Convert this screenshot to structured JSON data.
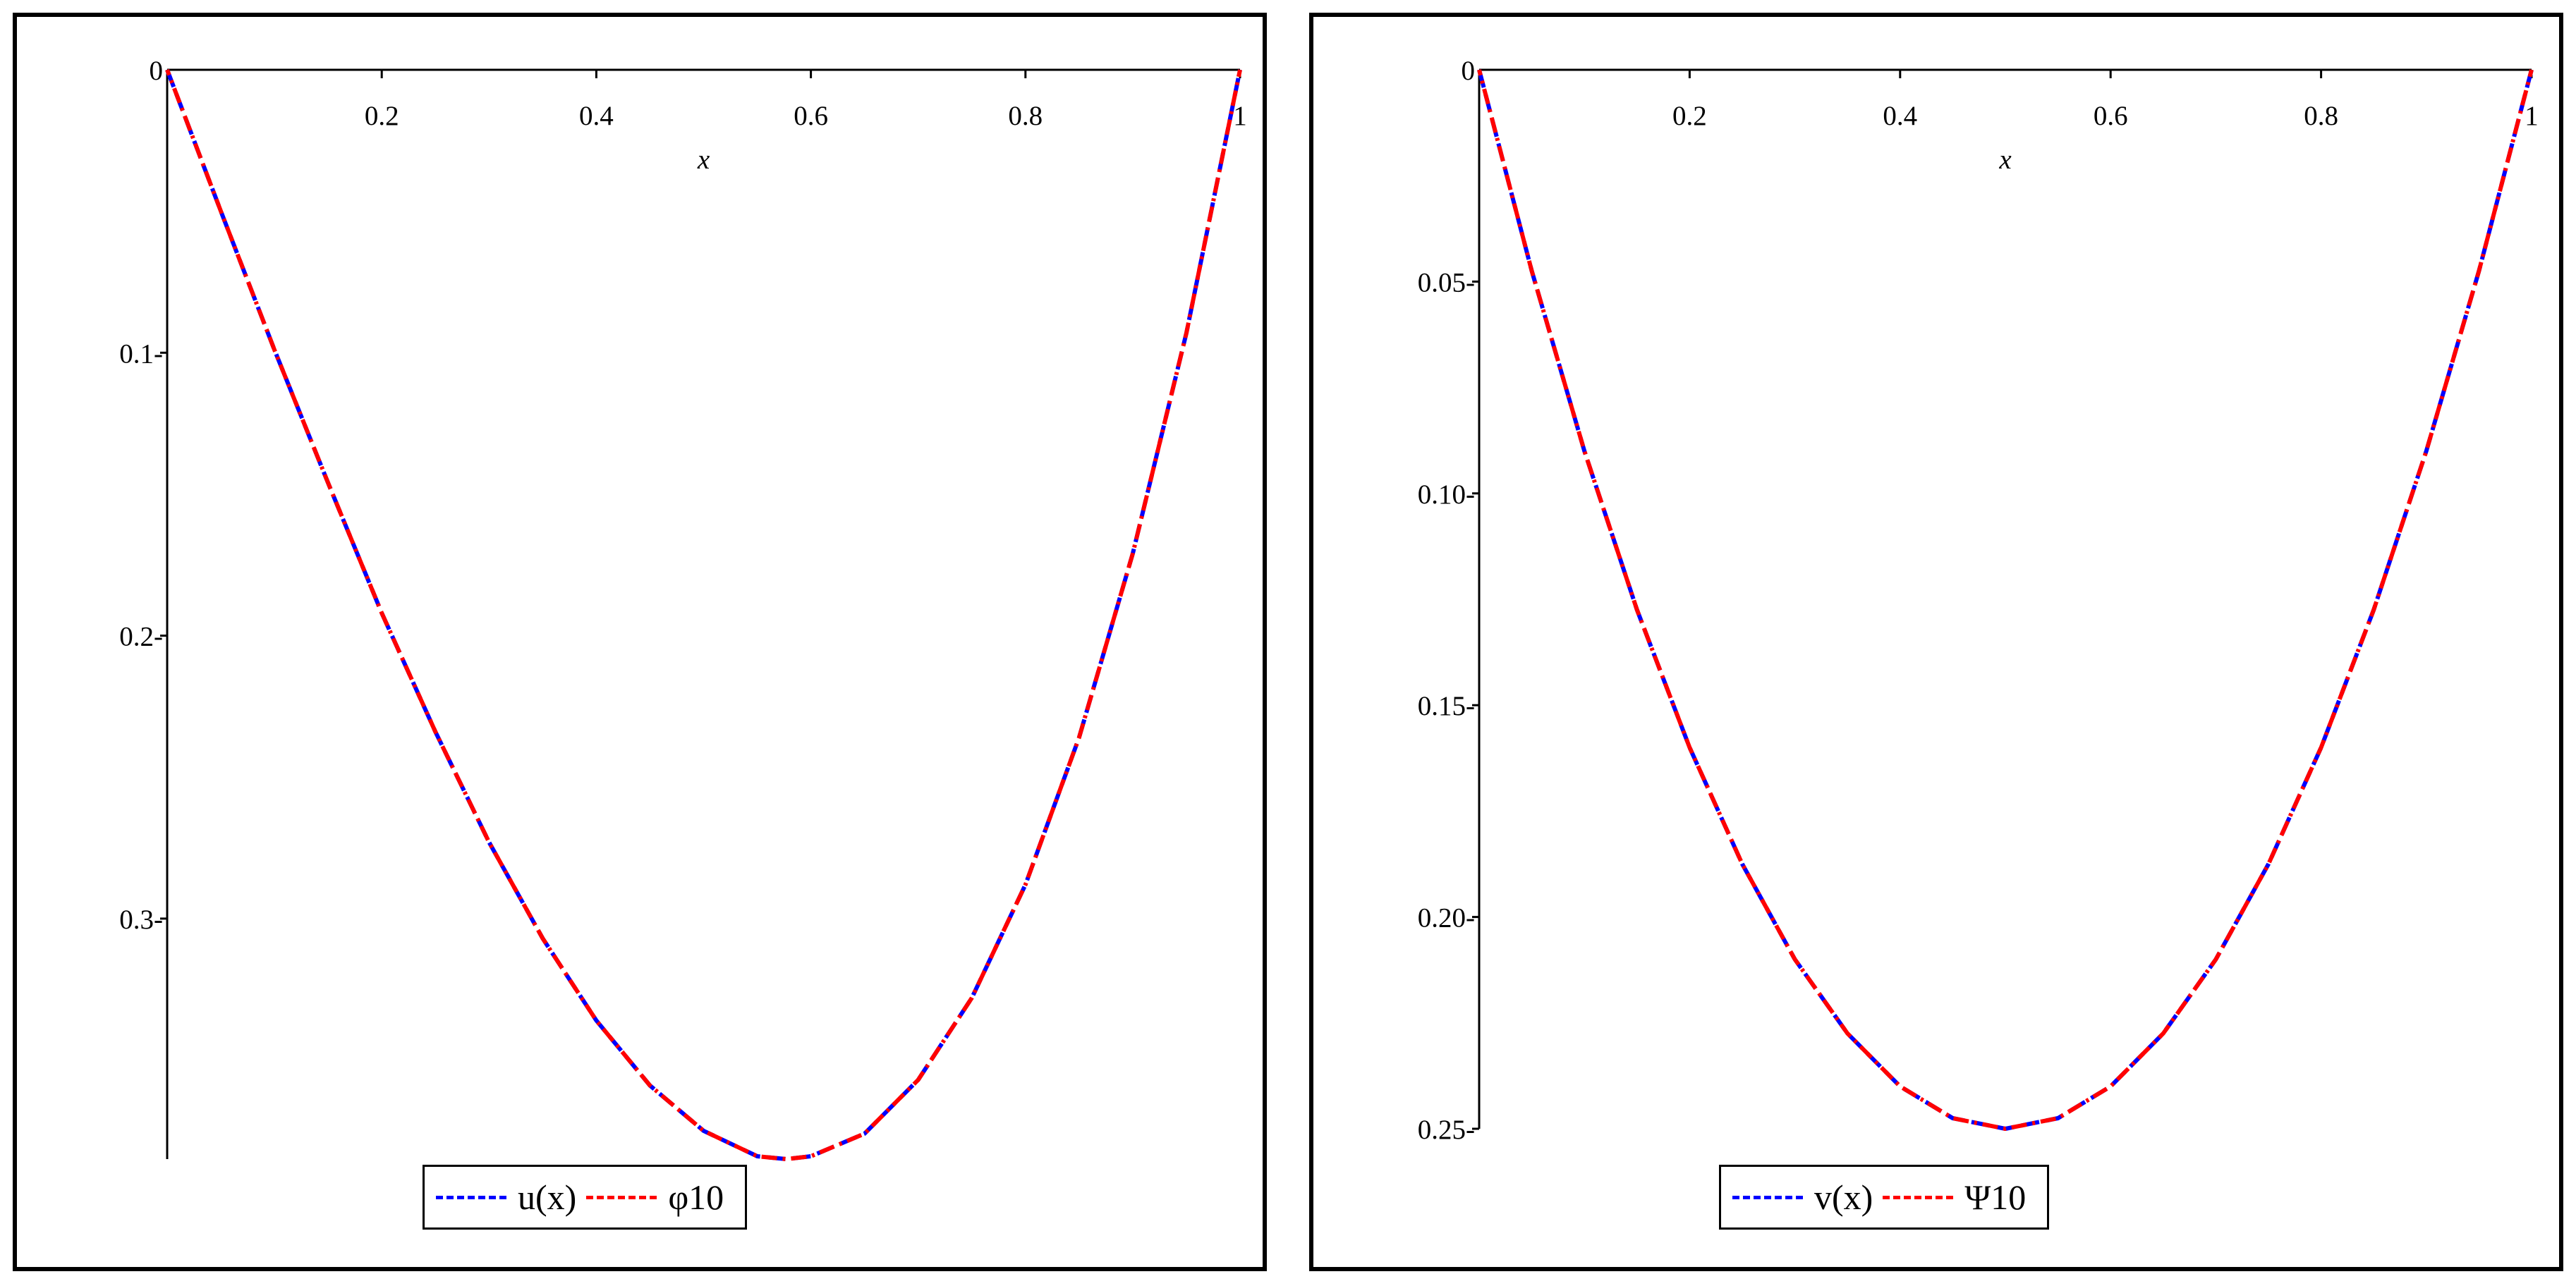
{
  "chart_data": [
    {
      "type": "line",
      "xlabel": "x",
      "ylabel": "",
      "xlim": [
        0,
        1
      ],
      "ylim": [
        0,
        0.385
      ],
      "y_inverted": true,
      "x_ticks": [
        0.2,
        0.4,
        0.6,
        0.8,
        1
      ],
      "x_tick_labels": [
        "0.2",
        "0.4",
        "0.6",
        "0.8",
        "1"
      ],
      "y_ticks": [
        0,
        0.1,
        0.2,
        0.3
      ],
      "y_tick_labels": [
        "0",
        "0.1-",
        "0.2-",
        "0.3-"
      ],
      "x": [
        0,
        0.05,
        0.1,
        0.15,
        0.2,
        0.25,
        0.3,
        0.35,
        0.4,
        0.45,
        0.5,
        0.55,
        0.577,
        0.6,
        0.65,
        0.7,
        0.75,
        0.8,
        0.85,
        0.9,
        0.95,
        1
      ],
      "series": [
        {
          "name": "u(x)",
          "color": "#0000ff",
          "dash": "dash",
          "values": [
            0,
            0.05,
            0.099,
            0.146,
            0.192,
            0.234,
            0.273,
            0.307,
            0.336,
            0.359,
            0.375,
            0.384,
            0.385,
            0.384,
            0.376,
            0.357,
            0.328,
            0.288,
            0.236,
            0.171,
            0.093,
            0
          ]
        },
        {
          "name": "φ10",
          "color": "#ff0000",
          "dash": "dashdot",
          "values": [
            0,
            0.05,
            0.099,
            0.146,
            0.192,
            0.234,
            0.273,
            0.307,
            0.336,
            0.359,
            0.375,
            0.384,
            0.385,
            0.384,
            0.376,
            0.357,
            0.328,
            0.288,
            0.236,
            0.171,
            0.093,
            0
          ]
        }
      ],
      "legend": {
        "position": "bottom-center",
        "entries": [
          "u(x)",
          "φ10"
        ]
      },
      "grid": false
    },
    {
      "type": "line",
      "xlabel": "x",
      "ylabel": "",
      "xlim": [
        0,
        1
      ],
      "ylim": [
        0,
        0.25
      ],
      "y_inverted": true,
      "x_ticks": [
        0.2,
        0.4,
        0.6,
        0.8,
        1
      ],
      "x_tick_labels": [
        "0.2",
        "0.4",
        "0.6",
        "0.8",
        "1"
      ],
      "y_ticks": [
        0,
        0.05,
        0.1,
        0.15,
        0.2,
        0.25
      ],
      "y_tick_labels": [
        "0",
        "0.05-",
        "0.10-",
        "0.15-",
        "0.20-",
        "0.25-"
      ],
      "x": [
        0,
        0.05,
        0.1,
        0.15,
        0.2,
        0.25,
        0.3,
        0.35,
        0.4,
        0.45,
        0.5,
        0.55,
        0.6,
        0.65,
        0.7,
        0.75,
        0.8,
        0.85,
        0.9,
        0.95,
        1
      ],
      "series": [
        {
          "name": "v(x)",
          "color": "#0000ff",
          "dash": "dash",
          "values": [
            0,
            0.0475,
            0.09,
            0.1275,
            0.16,
            0.1875,
            0.21,
            0.2275,
            0.24,
            0.2475,
            0.25,
            0.2475,
            0.24,
            0.2275,
            0.21,
            0.1875,
            0.16,
            0.1275,
            0.09,
            0.0475,
            0
          ]
        },
        {
          "name": "Ψ10",
          "color": "#ff0000",
          "dash": "dashdot",
          "values": [
            0,
            0.0475,
            0.09,
            0.1275,
            0.16,
            0.1875,
            0.21,
            0.2275,
            0.24,
            0.2475,
            0.25,
            0.2475,
            0.24,
            0.2275,
            0.21,
            0.1875,
            0.16,
            0.1275,
            0.09,
            0.0475,
            0
          ]
        }
      ],
      "legend": {
        "position": "bottom-center",
        "entries": [
          "v(x)",
          "Ψ10"
        ]
      },
      "grid": false
    }
  ]
}
